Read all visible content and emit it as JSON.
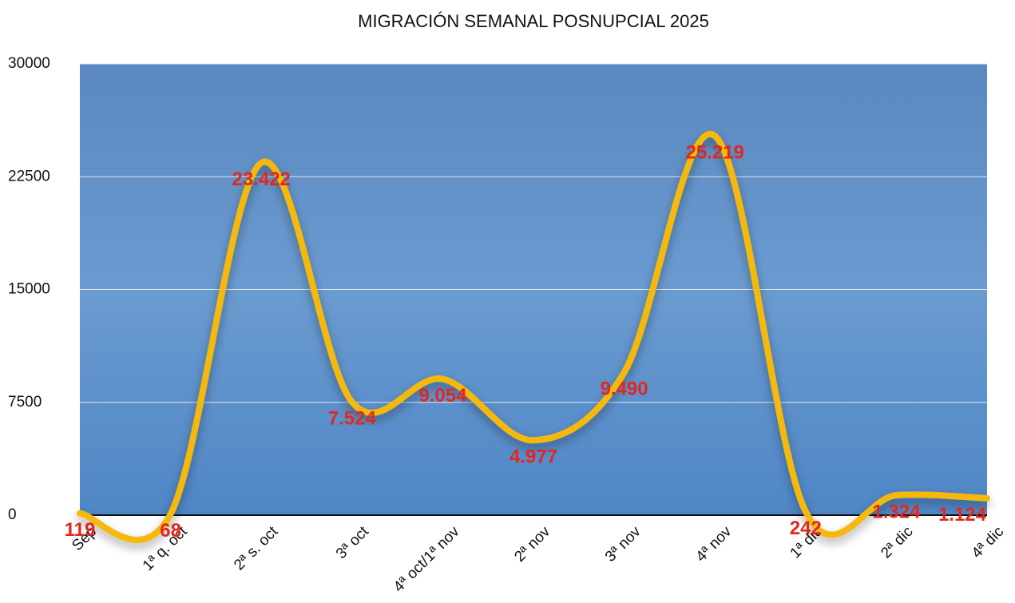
{
  "chart_data": {
    "type": "line",
    "title": "MIGRACIÓN SEMANAL POSNUPCIAL 2025",
    "categories": [
      "Sep",
      "1ª q. oct",
      "2ª s. oct",
      "3ª  oct",
      "4ª oct/1ª nov",
      "2ª nov",
      "3ª nov",
      "4ª nov",
      "1ª dic",
      "2ª dic",
      "4ª dic"
    ],
    "series": [
      {
        "color": "#f5b90f",
        "values": [
          119,
          68,
          23422,
          7524,
          9054,
          4977,
          9490,
          25219,
          242,
          1324,
          1124
        ],
        "value_labels": [
          "119",
          "68",
          "23.422",
          "7.524",
          "9.054",
          "4.977",
          "9.490",
          "25.219",
          "242",
          "1.324",
          "1.124"
        ],
        "label_color": "#e0281e"
      }
    ],
    "ylim": [
      0,
      30000
    ],
    "yticks": [
      0,
      7500,
      15000,
      22500,
      30000
    ],
    "grid": true,
    "smooth": true
  }
}
